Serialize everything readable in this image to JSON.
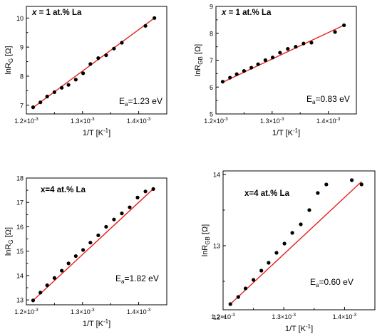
{
  "chart_data": [
    {
      "type": "scatter",
      "label_prefix": "x",
      "label_rest": " = 1 at.% La",
      "label_italic_var": true,
      "xlabel_main": "1/T [K",
      "xlabel_sup": "-1",
      "xlabel_end": "]",
      "ylabel_main": "lnR",
      "ylabel_sub": "G",
      "ylabel_end": " [Ω]",
      "ea_main": "E",
      "ea_sub": "a",
      "ea_value": "=1.23 eV",
      "xlim": [
        0.0012,
        0.00145
      ],
      "ylim": [
        6.7,
        10.4
      ],
      "xticks": [
        {
          "v": 0.0012,
          "l": "1.2×10",
          "e": "-3"
        },
        {
          "v": 0.0013,
          "l": "1.3×10",
          "e": "-3"
        },
        {
          "v": 0.0014,
          "l": "1.4×10",
          "e": "-3"
        }
      ],
      "yticks": [
        7,
        8,
        9,
        10
      ],
      "x": [
        0.001212,
        0.001225,
        0.001237,
        0.00125,
        0.001263,
        0.001275,
        0.001288,
        0.001301,
        0.001314,
        0.001328,
        0.001342,
        0.001356,
        0.00137,
        0.001412,
        0.001428
      ],
      "y": [
        6.93,
        7.1,
        7.3,
        7.45,
        7.6,
        7.7,
        7.88,
        8.1,
        8.42,
        8.62,
        8.72,
        8.95,
        9.15,
        9.73,
        10.0
      ],
      "fit": [
        [
          0.001212,
          6.92
        ],
        [
          0.001428,
          10.0
        ]
      ],
      "marker_color": "#000000",
      "fit_color": "#e8201a"
    },
    {
      "type": "scatter",
      "label_prefix": "x",
      "label_rest": " = 1 at.% La",
      "label_italic_var": true,
      "xlabel_main": "1/T [K",
      "xlabel_sup": "-1",
      "xlabel_end": "]",
      "ylabel_main": "lnR",
      "ylabel_sub": "GB",
      "ylabel_end": " [Ω]",
      "ea_main": "E",
      "ea_sub": "a",
      "ea_value": "=0.83 eV",
      "xlim": [
        0.0012,
        0.00145
      ],
      "ylim": [
        5,
        9
      ],
      "xticks": [
        {
          "v": 0.0012,
          "l": "1.2×10",
          "e": "-3"
        },
        {
          "v": 0.0013,
          "l": "1.3×10",
          "e": "-3"
        },
        {
          "v": 0.0014,
          "l": "1.4×10",
          "e": "-3"
        }
      ],
      "yticks": [
        5,
        6,
        7,
        8,
        9
      ],
      "x": [
        0.001212,
        0.001225,
        0.001237,
        0.00125,
        0.001263,
        0.001275,
        0.001288,
        0.001301,
        0.001314,
        0.001328,
        0.001342,
        0.001356,
        0.00137,
        0.001412,
        0.001428
      ],
      "y": [
        6.2,
        6.35,
        6.48,
        6.6,
        6.72,
        6.85,
        7.0,
        7.1,
        7.28,
        7.42,
        7.5,
        7.62,
        7.65,
        8.05,
        8.3
      ],
      "fit": [
        [
          0.001212,
          6.18
        ],
        [
          0.001428,
          8.3
        ]
      ],
      "marker_color": "#000000",
      "fit_color": "#e8201a"
    },
    {
      "type": "scatter",
      "label_prefix": "x=4 at.% La",
      "label_rest": "",
      "label_italic_var": false,
      "xlabel_main": "1/T [K",
      "xlabel_sup": "-1",
      "xlabel_end": "]",
      "ylabel_main": "lnR",
      "ylabel_sub": "G",
      "ylabel_end": " [Ω]",
      "ea_main": "E",
      "ea_sub": "a",
      "ea_value": "=1.82 eV",
      "xlim": [
        0.0012,
        0.00145
      ],
      "ylim": [
        12.8,
        18
      ],
      "xticks": [
        {
          "v": 0.0012,
          "l": "1.2×10",
          "e": "-3"
        },
        {
          "v": 0.0013,
          "l": "1.3×10",
          "e": "-3"
        },
        {
          "v": 0.0014,
          "l": "1.4×10",
          "e": "-3"
        }
      ],
      "yticks": [
        13,
        14,
        15,
        16,
        17,
        18
      ],
      "x": [
        0.001212,
        0.001225,
        0.001237,
        0.00125,
        0.001263,
        0.001275,
        0.001288,
        0.001301,
        0.001314,
        0.001328,
        0.001342,
        0.001356,
        0.00137,
        0.001384,
        0.001398,
        0.001412,
        0.001426
      ],
      "y": [
        12.98,
        13.3,
        13.6,
        13.9,
        14.2,
        14.5,
        14.8,
        15.05,
        15.35,
        15.65,
        16.0,
        16.3,
        16.55,
        16.8,
        17.2,
        17.45,
        17.55
      ],
      "fit": [
        [
          0.001212,
          12.98
        ],
        [
          0.001428,
          17.6
        ]
      ],
      "marker_color": "#000000",
      "fit_color": "#e8201a"
    },
    {
      "type": "scatter",
      "label_prefix": "x=4 at.% La",
      "label_rest": "",
      "label_italic_var": false,
      "xlabel_main": "1/T [K",
      "xlabel_sup": "-1",
      "xlabel_end": "]",
      "ylabel_main": "lnR",
      "ylabel_sub": "GB",
      "ylabel_end": " [Ω]",
      "ea_main": "E",
      "ea_sub": "a",
      "ea_value": "=0.60 eV",
      "xlim": [
        0.0012,
        0.00145
      ],
      "ylim": [
        12.1,
        14.05
      ],
      "xticks": [
        {
          "v": 0.0012,
          "l": "1.2×10",
          "e": "-3"
        },
        {
          "v": 0.0013,
          "l": "1.3×10",
          "e": "-3"
        },
        {
          "v": 0.0014,
          "l": "1.4×10",
          "e": "-3"
        }
      ],
      "yticks": [
        12,
        13,
        14
      ],
      "x": [
        0.001212,
        0.001225,
        0.001237,
        0.00125,
        0.001263,
        0.001275,
        0.001288,
        0.001301,
        0.001314,
        0.001328,
        0.001342,
        0.001356,
        0.00137,
        0.001412,
        0.001428
      ],
      "y": [
        12.18,
        12.28,
        12.4,
        12.52,
        12.65,
        12.76,
        12.9,
        13.03,
        13.18,
        13.3,
        13.5,
        13.74,
        13.86,
        13.92,
        13.86
      ],
      "fit": [
        [
          0.001212,
          12.18
        ],
        [
          0.001428,
          13.9
        ]
      ],
      "marker_color": "#000000",
      "fit_color": "#e8201a"
    }
  ]
}
